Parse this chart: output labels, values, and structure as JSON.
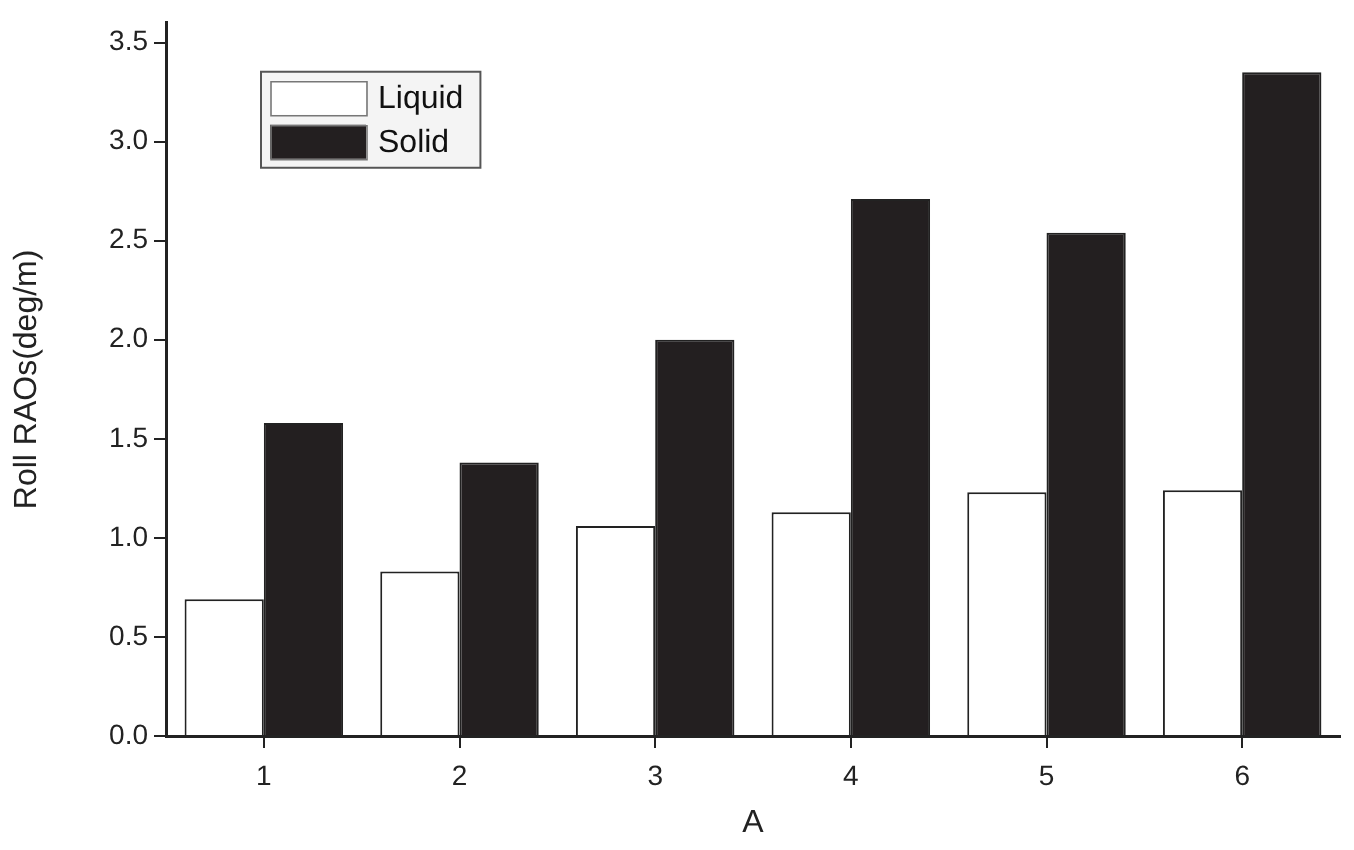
{
  "chart_data": {
    "type": "bar",
    "xlabel": "A",
    "ylabel": "Roll RAOs(deg/m)",
    "categories": [
      "1",
      "2",
      "3",
      "4",
      "5",
      "6"
    ],
    "series": [
      {
        "name": "Liquid",
        "color": "#ffffff",
        "values": [
          0.69,
          0.83,
          1.06,
          1.13,
          1.23,
          1.24
        ]
      },
      {
        "name": "Solid",
        "color": "#231f20",
        "values": [
          1.58,
          1.38,
          2.0,
          2.71,
          2.54,
          3.35
        ]
      }
    ],
    "ylim": [
      0,
      3.6
    ],
    "yticks": [
      {
        "value": 0,
        "label": "0.0"
      },
      {
        "value": 0.5,
        "label": "0.5"
      },
      {
        "value": 1,
        "label": "1.0"
      },
      {
        "value": 1.5,
        "label": "1.5"
      },
      {
        "value": 2,
        "label": "2.0"
      },
      {
        "value": 2.5,
        "label": "2.5"
      },
      {
        "value": 3,
        "label": "3.0"
      },
      {
        "value": 3.5,
        "label": "3.5"
      }
    ],
    "grid": false,
    "legend": "top left"
  }
}
